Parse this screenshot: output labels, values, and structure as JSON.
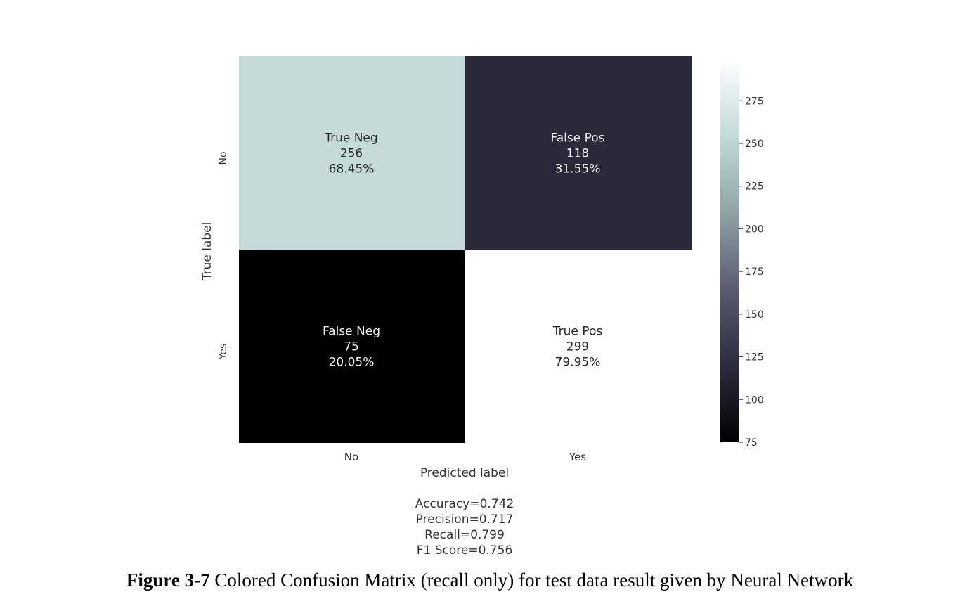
{
  "chart_data": {
    "type": "heatmap",
    "title": "",
    "xlabel": "Predicted label",
    "ylabel": "True label",
    "x_categories": [
      "No",
      "Yes"
    ],
    "y_categories": [
      "No",
      "Yes"
    ],
    "cells": [
      [
        {
          "name": "True Neg",
          "value": 256,
          "percent": "68.45%",
          "value_label": "256"
        },
        {
          "name": "False Pos",
          "value": 118,
          "percent": "31.55%",
          "value_label": "118"
        }
      ],
      [
        {
          "name": "False Neg",
          "value": 75,
          "percent": "20.05%",
          "value_label": "75"
        },
        {
          "name": "True Pos",
          "value": 299,
          "percent": "79.95%",
          "value_label": "299"
        }
      ]
    ],
    "colorbar": {
      "range": [
        75,
        299
      ],
      "ticks": [
        75,
        100,
        125,
        150,
        175,
        200,
        225,
        250,
        275
      ],
      "colormap": "bone",
      "stops": [
        "#000000",
        "#2b2b3c",
        "#5a5b70",
        "#8fa3a6",
        "#c2dad8",
        "#ffffff"
      ]
    },
    "metrics": [
      "Accuracy=0.742",
      "Precision=0.717",
      "Recall=0.799",
      "F1 Score=0.756"
    ]
  },
  "caption": {
    "label": "Figure 3-7",
    "text": "Colored Confusion Matrix (recall only) for test data result given by Neural Network"
  }
}
